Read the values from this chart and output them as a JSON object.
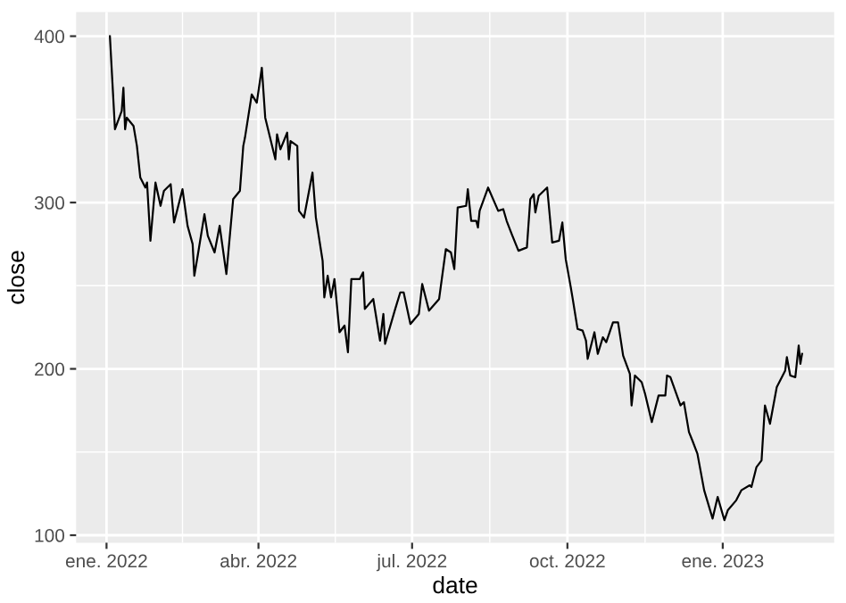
{
  "chart_data": {
    "type": "line",
    "xlabel": "date",
    "ylabel": "close",
    "x": [
      "2022-01-03",
      "2022-01-06",
      "2022-01-10",
      "2022-01-11",
      "2022-01-12",
      "2022-01-13",
      "2022-01-17",
      "2022-01-19",
      "2022-01-21",
      "2022-01-24",
      "2022-01-25",
      "2022-01-27",
      "2022-01-30",
      "2022-02-02",
      "2022-02-04",
      "2022-02-08",
      "2022-02-10",
      "2022-02-15",
      "2022-02-18",
      "2022-02-21",
      "2022-02-22",
      "2022-02-24",
      "2022-02-28",
      "2022-03-02",
      "2022-03-06",
      "2022-03-09",
      "2022-03-13",
      "2022-03-17",
      "2022-03-21",
      "2022-03-23",
      "2022-03-24",
      "2022-03-28",
      "2022-03-31",
      "2022-04-03",
      "2022-04-05",
      "2022-04-11",
      "2022-04-12",
      "2022-04-14",
      "2022-04-18",
      "2022-04-19",
      "2022-04-20",
      "2022-04-24",
      "2022-04-25",
      "2022-04-28",
      "2022-05-03",
      "2022-05-05",
      "2022-05-09",
      "2022-05-10",
      "2022-05-12",
      "2022-05-14",
      "2022-05-16",
      "2022-05-19",
      "2022-05-22",
      "2022-05-24",
      "2022-05-26",
      "2022-05-31",
      "2022-06-02",
      "2022-06-03",
      "2022-06-08",
      "2022-06-12",
      "2022-06-14",
      "2022-06-15",
      "2022-06-21",
      "2022-06-24",
      "2022-06-26",
      "2022-06-30",
      "2022-07-05",
      "2022-07-07",
      "2022-07-11",
      "2022-07-17",
      "2022-07-21",
      "2022-07-24",
      "2022-07-26",
      "2022-07-28",
      "2022-08-02",
      "2022-08-03",
      "2022-08-05",
      "2022-08-08",
      "2022-08-09",
      "2022-08-10",
      "2022-08-15",
      "2022-08-21",
      "2022-08-24",
      "2022-08-26",
      "2022-08-29",
      "2022-09-02",
      "2022-09-07",
      "2022-09-09",
      "2022-09-11",
      "2022-09-12",
      "2022-09-14",
      "2022-09-19",
      "2022-09-22",
      "2022-09-26",
      "2022-09-28",
      "2022-09-30",
      "2022-10-03",
      "2022-10-04",
      "2022-10-07",
      "2022-10-10",
      "2022-10-12",
      "2022-10-13",
      "2022-10-17",
      "2022-10-19",
      "2022-10-22",
      "2022-10-24",
      "2022-10-28",
      "2022-10-31",
      "2022-11-03",
      "2022-11-07",
      "2022-11-08",
      "2022-11-10",
      "2022-11-14",
      "2022-11-16",
      "2022-11-20",
      "2022-11-24",
      "2022-11-28",
      "2022-11-29",
      "2022-12-01",
      "2022-12-07",
      "2022-12-09",
      "2022-12-12",
      "2022-12-14",
      "2022-12-17",
      "2022-12-21",
      "2022-12-26",
      "2022-12-29",
      "2023-01-02",
      "2023-01-04",
      "2023-01-09",
      "2023-01-12",
      "2023-01-17",
      "2023-01-18",
      "2023-01-21",
      "2023-01-24",
      "2023-01-26",
      "2023-01-29",
      "2023-02-02",
      "2023-02-07",
      "2023-02-08",
      "2023-02-10",
      "2023-02-13",
      "2023-02-15",
      "2023-02-16",
      "2023-02-17"
    ],
    "series": [
      {
        "color": "#000000",
        "values": [
          400,
          344,
          355,
          369,
          344,
          351,
          346,
          334,
          315,
          309,
          312,
          277,
          312,
          298,
          307,
          311,
          288,
          308,
          286,
          275,
          256,
          268,
          293,
          280,
          270,
          286,
          257,
          302,
          307,
          334,
          339,
          365,
          360,
          381,
          351,
          326,
          341,
          332,
          342,
          326,
          337,
          334,
          295,
          291,
          318,
          291,
          265,
          243,
          256,
          243,
          254,
          222,
          226,
          210,
          254,
          254,
          258,
          236,
          242,
          217,
          233,
          215,
          236,
          246,
          246,
          227,
          233,
          251,
          235,
          242,
          272,
          270,
          260,
          297,
          298,
          308,
          289,
          289,
          285,
          295,
          309,
          295,
          296,
          289,
          281,
          271,
          273,
          302,
          305,
          294,
          304,
          309,
          276,
          277,
          288,
          266,
          249,
          243,
          224,
          223,
          217,
          206,
          222,
          209,
          219,
          216,
          228,
          228,
          208,
          197,
          178,
          196,
          192,
          185,
          168,
          184,
          184,
          196,
          195,
          178,
          180,
          162,
          157,
          149,
          127,
          110,
          123,
          109,
          115,
          121,
          127,
          130,
          129,
          141,
          145,
          178,
          167,
          189,
          199,
          207,
          196,
          195,
          214,
          203,
          209
        ]
      }
    ],
    "xlim": [
      "2021-12-14",
      "2023-03-08"
    ],
    "ylim": [
      95.5,
      414.5
    ],
    "xticks": [
      {
        "value": "2022-01-01",
        "label": "ene. 2022"
      },
      {
        "value": "2022-04-01",
        "label": "abr. 2022"
      },
      {
        "value": "2022-07-01",
        "label": "jul. 2022"
      },
      {
        "value": "2022-10-01",
        "label": "oct. 2022"
      },
      {
        "value": "2023-01-01",
        "label": "ene. 2023"
      }
    ],
    "yticks": [
      100,
      200,
      300,
      400
    ],
    "grid": true,
    "line_style": "solid"
  }
}
